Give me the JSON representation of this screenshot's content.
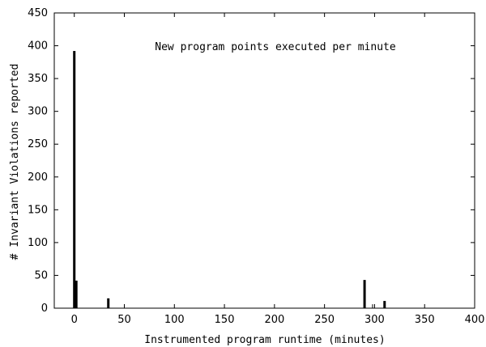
{
  "chart_data": {
    "type": "bar",
    "title": "",
    "annotation": "New program points executed per minute",
    "xlabel": "Instrumented program runtime (minutes)",
    "ylabel": "# Invariant Violations reported",
    "xlim": [
      -20,
      400
    ],
    "ylim": [
      0,
      450
    ],
    "xticks": [
      0,
      50,
      100,
      150,
      200,
      250,
      300,
      350,
      400
    ],
    "yticks": [
      0,
      50,
      100,
      150,
      200,
      250,
      300,
      350,
      400,
      450
    ],
    "grid": false,
    "legend": "none",
    "bar_color": "#000000",
    "x": [
      0,
      2,
      34,
      290,
      298,
      310
    ],
    "values": [
      392,
      42,
      15,
      43,
      6,
      11
    ]
  }
}
